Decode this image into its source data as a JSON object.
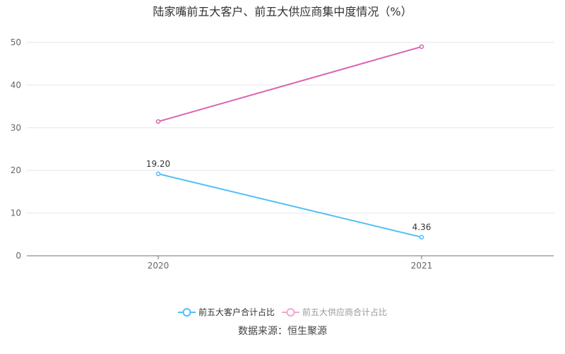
{
  "chart_data": {
    "type": "line",
    "title": "陆家嘴前五大客户、前五大供应商集中度情况（%）",
    "categories": [
      "2020",
      "2021"
    ],
    "ylim": [
      0,
      50
    ],
    "yticks": [
      "0",
      "10",
      "20",
      "30",
      "40",
      "50"
    ],
    "series": [
      {
        "name": "前五大客户合计占比",
        "values": [
          19.2,
          4.36
        ],
        "labels": [
          "19.20",
          "4.36"
        ],
        "color": "#4fbff5",
        "legend_color": "#333333"
      },
      {
        "name": "前五大供应商合计占比",
        "values": [
          31.45,
          49.0
        ],
        "labels": [],
        "color": "#d964b0",
        "legend_color": "#999999",
        "legend_icon_color": "#f0a8d0"
      }
    ],
    "legend": "bottom-center",
    "grid": true
  },
  "source": "数据来源：恒生聚源"
}
